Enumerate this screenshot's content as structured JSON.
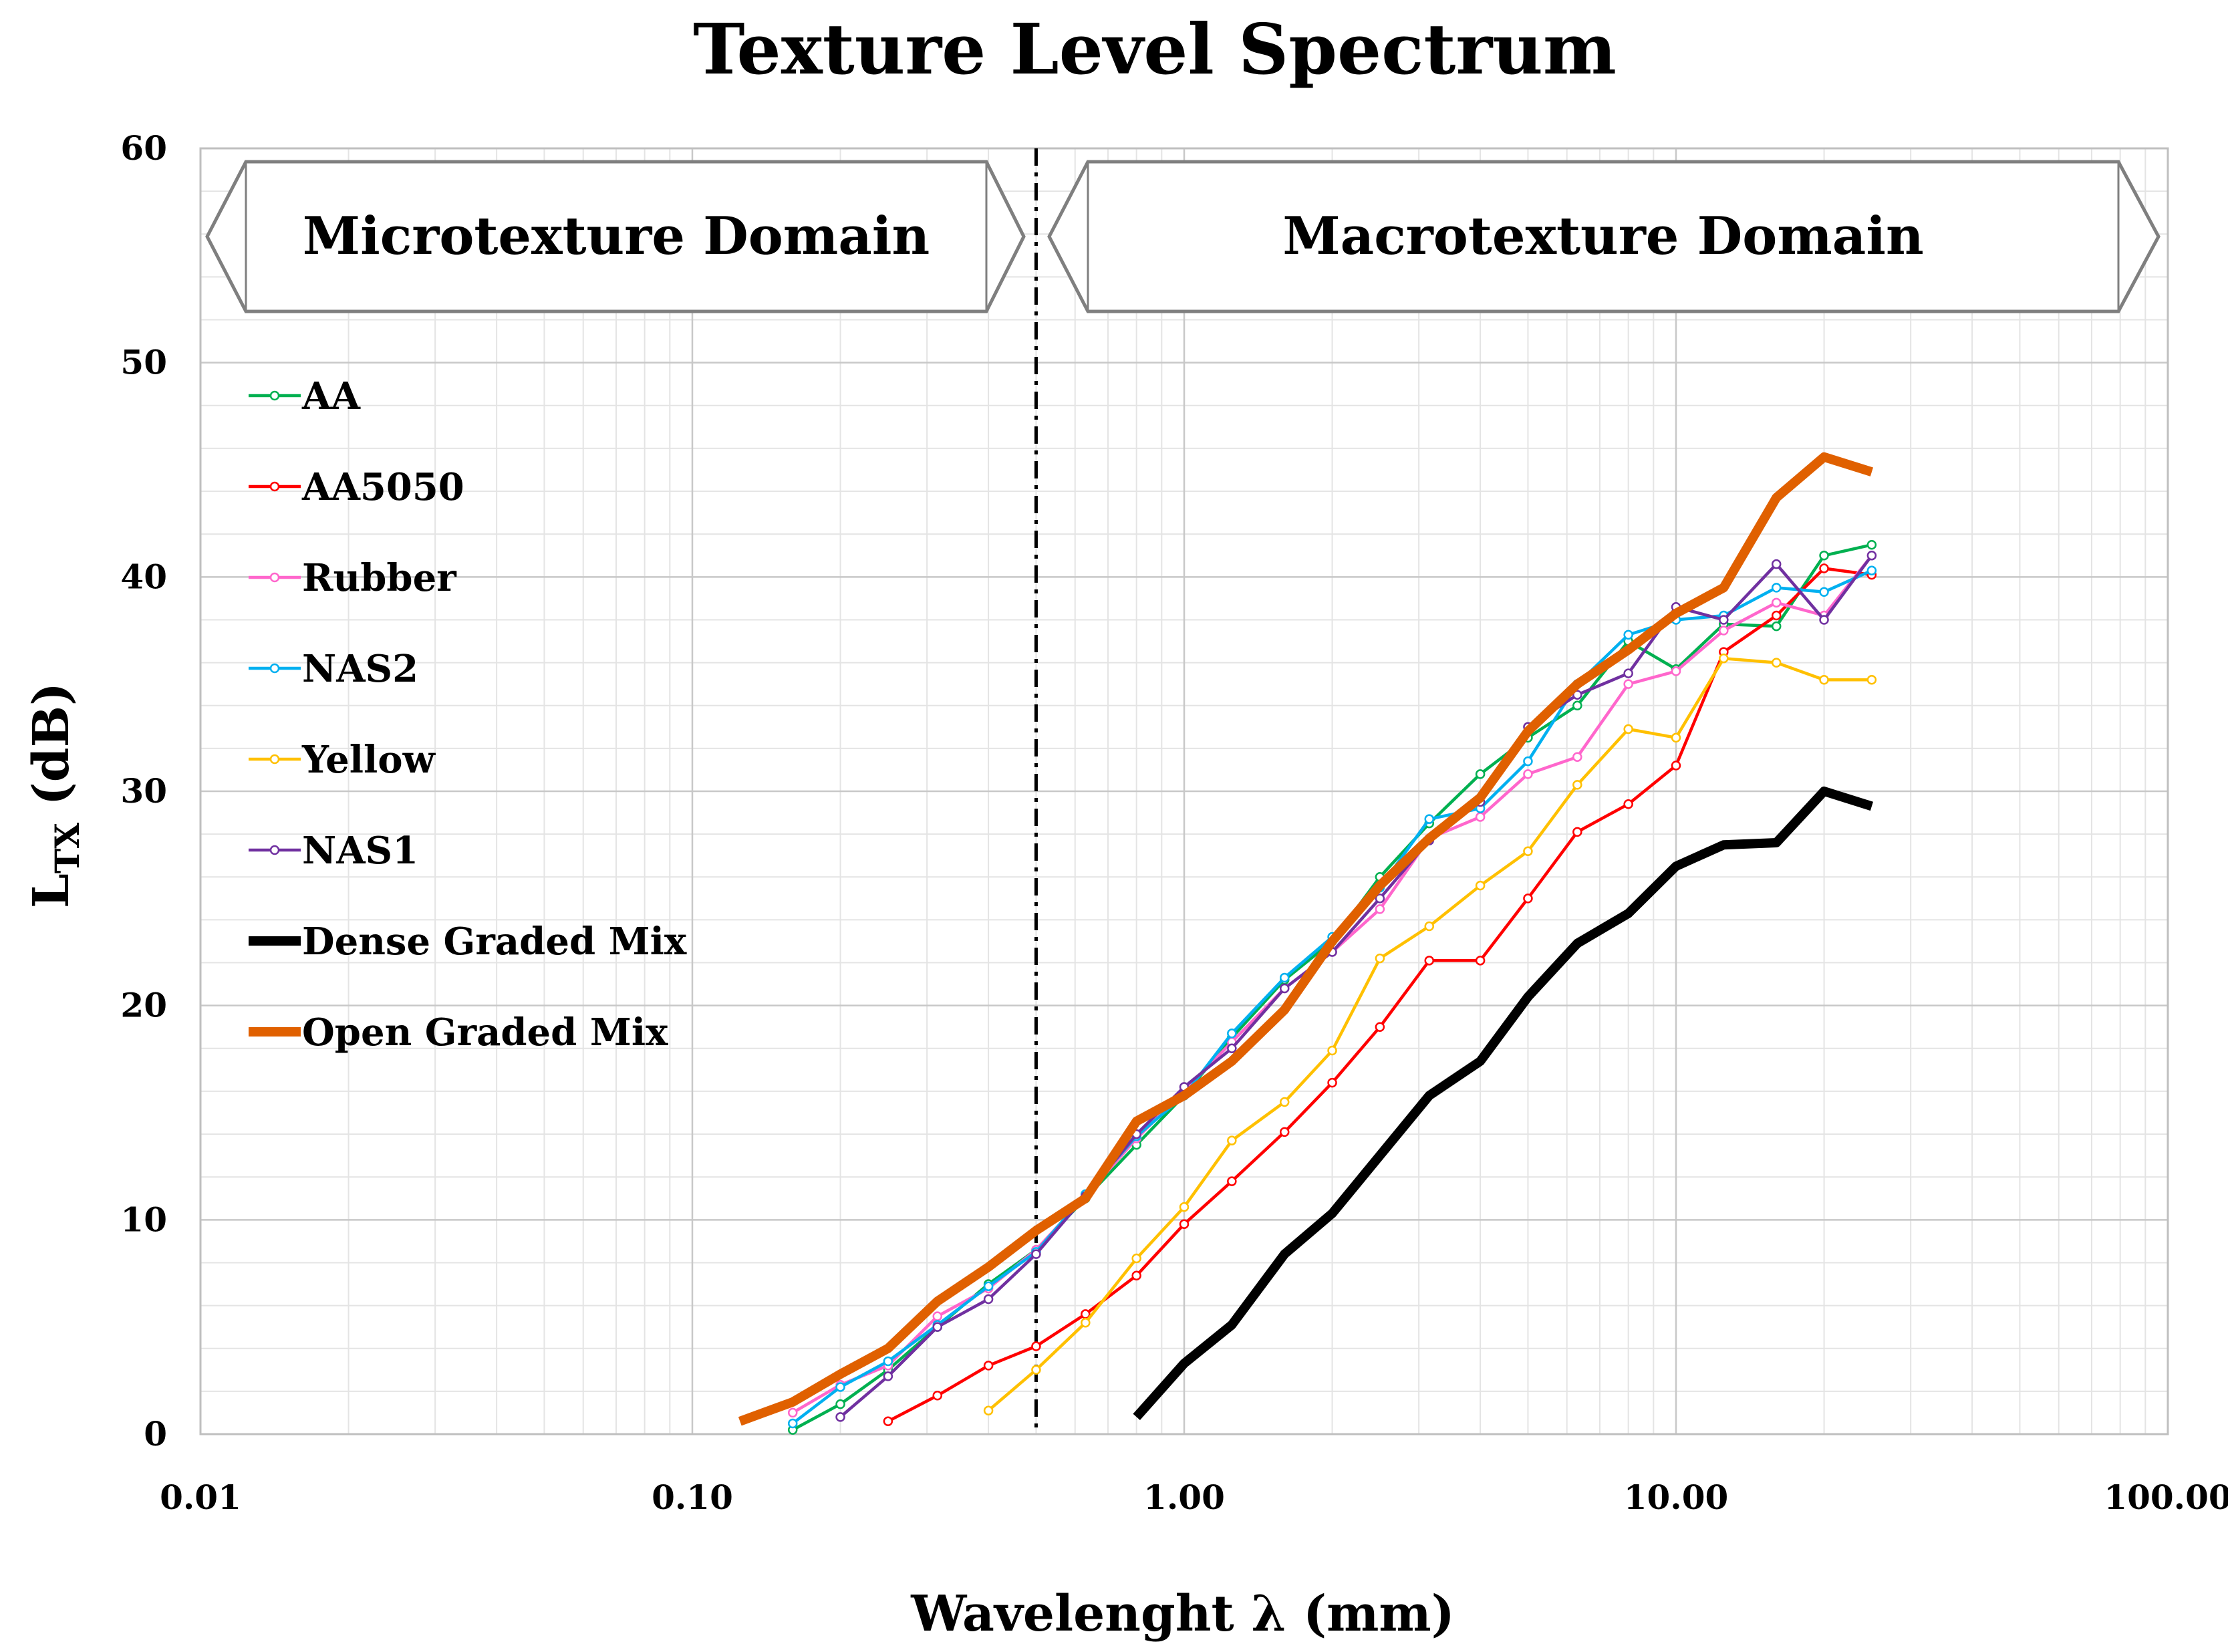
{
  "chart_data": {
    "type": "line",
    "title": "Texture Level Spectrum",
    "xlabel": "Wavelenght λ (mm)",
    "ylabel_main": "L",
    "ylabel_sub": "TX",
    "ylabel_unit": " (dB)",
    "x_scale": "log",
    "xlim": [
      0.01,
      100
    ],
    "ylim": [
      0,
      60
    ],
    "x_ticks": [
      0.01,
      0.1,
      1,
      10,
      100
    ],
    "x_tick_labels": [
      "0.01",
      "0.10",
      "1.00",
      "10.00",
      "100.00"
    ],
    "y_ticks": [
      0,
      10,
      20,
      30,
      40,
      50,
      60
    ],
    "y_tick_labels": [
      "0",
      "10",
      "20",
      "30",
      "40",
      "50",
      "60"
    ],
    "grid": true,
    "legend_position": "left",
    "divider_x": 0.5,
    "annotations": [
      {
        "text": "Microtexture Domain",
        "x_from": 0.01,
        "x_to": 0.5,
        "direction": "left"
      },
      {
        "text": "Macrotexture Domain",
        "x_from": 0.5,
        "x_to": 100,
        "direction": "both"
      }
    ],
    "series": [
      {
        "name": "AA",
        "color": "#00B050",
        "thick": false,
        "x": [
          0.16,
          0.2,
          0.25,
          0.315,
          0.4,
          0.5,
          0.63,
          0.8,
          1.0,
          1.25,
          1.6,
          2.0,
          2.5,
          3.15,
          4.0,
          5.0,
          6.3,
          8.0,
          10.0,
          12.5,
          16.0,
          20.0,
          25.0
        ],
        "y": [
          0.2,
          1.4,
          3.0,
          5.0,
          7.0,
          8.6,
          11.0,
          13.5,
          15.8,
          18.5,
          21.2,
          23.0,
          26.0,
          28.5,
          30.8,
          32.5,
          34.0,
          37.0,
          35.7,
          37.8,
          37.7,
          41.0,
          41.5
        ]
      },
      {
        "name": "AA5050",
        "color": "#FF0000",
        "thick": false,
        "x": [
          0.25,
          0.315,
          0.4,
          0.5,
          0.63,
          0.8,
          1.0,
          1.25,
          1.6,
          2.0,
          2.5,
          3.15,
          4.0,
          5.0,
          6.3,
          8.0,
          10.0,
          12.5,
          16.0,
          20.0,
          25.0
        ],
        "y": [
          0.6,
          1.8,
          3.2,
          4.1,
          5.6,
          7.4,
          9.8,
          11.8,
          14.1,
          16.4,
          19.0,
          22.1,
          22.1,
          25.0,
          28.1,
          29.4,
          31.2,
          36.5,
          38.2,
          40.4,
          40.1
        ]
      },
      {
        "name": "Rubber",
        "color": "#FF66CC",
        "thick": false,
        "x": [
          0.16,
          0.2,
          0.25,
          0.315,
          0.4,
          0.5,
          0.63,
          0.8,
          1.0,
          1.25,
          1.6,
          2.0,
          2.5,
          3.15,
          4.0,
          5.0,
          6.3,
          8.0,
          10.0,
          12.5,
          16.0,
          20.0,
          25.0
        ],
        "y": [
          1.0,
          2.3,
          3.2,
          5.5,
          6.8,
          8.6,
          11.1,
          13.8,
          16.0,
          18.3,
          20.8,
          22.5,
          24.5,
          27.8,
          28.8,
          30.8,
          31.6,
          35.0,
          35.6,
          37.5,
          38.8,
          38.2,
          41.0
        ]
      },
      {
        "name": "NAS2",
        "color": "#00B0F0",
        "thick": false,
        "x": [
          0.16,
          0.2,
          0.25,
          0.315,
          0.4,
          0.5,
          0.63,
          0.8,
          1.0,
          1.25,
          1.6,
          2.0,
          2.5,
          3.15,
          4.0,
          5.0,
          6.3,
          8.0,
          10.0,
          12.5,
          16.0,
          20.0,
          25.0
        ],
        "y": [
          0.5,
          2.2,
          3.4,
          5.1,
          6.9,
          8.5,
          11.2,
          13.9,
          15.8,
          18.7,
          21.3,
          23.2,
          25.5,
          28.7,
          29.2,
          31.4,
          35.0,
          37.3,
          38.0,
          38.2,
          39.5,
          39.3,
          40.3
        ]
      },
      {
        "name": "Yellow",
        "color": "#FFC000",
        "thick": false,
        "x": [
          0.4,
          0.5,
          0.63,
          0.8,
          1.0,
          1.25,
          1.6,
          2.0,
          2.5,
          3.15,
          4.0,
          5.0,
          6.3,
          8.0,
          10.0,
          12.5,
          16.0,
          20.0,
          25.0
        ],
        "y": [
          1.1,
          3.0,
          5.2,
          8.2,
          10.6,
          13.7,
          15.5,
          17.9,
          22.2,
          23.7,
          25.6,
          27.2,
          30.3,
          32.9,
          32.5,
          36.2,
          36.0,
          35.2,
          35.2
        ]
      },
      {
        "name": "NAS1",
        "color": "#7030A0",
        "thick": false,
        "x": [
          0.2,
          0.25,
          0.315,
          0.4,
          0.5,
          0.63,
          0.8,
          1.0,
          1.25,
          1.6,
          2.0,
          2.5,
          3.15,
          4.0,
          5.0,
          6.3,
          8.0,
          10.0,
          12.5,
          16.0,
          20.0,
          25.0
        ],
        "y": [
          0.8,
          2.7,
          5.0,
          6.3,
          8.4,
          11.1,
          14.0,
          16.2,
          18.0,
          20.8,
          22.5,
          25.0,
          27.7,
          29.5,
          33.0,
          34.5,
          35.5,
          38.6,
          38.0,
          40.6,
          38.0,
          41.0
        ]
      },
      {
        "name": "Dense Graded Mix",
        "color": "#000000",
        "thick": true,
        "x": [
          0.8,
          1.0,
          1.25,
          1.6,
          2.0,
          2.5,
          3.15,
          4.0,
          5.0,
          6.3,
          8.0,
          10.0,
          12.5,
          16.0,
          20.0,
          25.0
        ],
        "y": [
          0.8,
          3.3,
          5.1,
          8.4,
          10.3,
          13.0,
          15.8,
          17.4,
          20.4,
          22.9,
          24.3,
          26.5,
          27.5,
          27.6,
          30.0,
          29.3
        ]
      },
      {
        "name": "Open Graded Mix",
        "color": "#E06000",
        "thick": true,
        "x": [
          0.125,
          0.16,
          0.2,
          0.25,
          0.315,
          0.4,
          0.5,
          0.63,
          0.8,
          1.0,
          1.25,
          1.6,
          2.0,
          2.5,
          3.15,
          4.0,
          5.0,
          6.3,
          8.0,
          10.0,
          12.5,
          16.0,
          20.0,
          25.0
        ],
        "y": [
          0.6,
          1.5,
          2.8,
          4.0,
          6.2,
          7.8,
          9.5,
          11.0,
          14.6,
          15.8,
          17.4,
          19.8,
          23.0,
          25.6,
          27.8,
          29.7,
          32.8,
          35.0,
          36.6,
          38.3,
          39.5,
          43.7,
          45.6,
          44.9
        ]
      }
    ]
  }
}
